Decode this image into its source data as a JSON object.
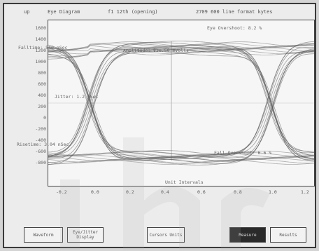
{
  "titlebar": {
    "left": "up",
    "center_left": "Eye Diagram",
    "center": "f1 12th (opening)",
    "right": "2709 600 line format kytes"
  },
  "annotations": {
    "eye_overshoot": "Eye Overshoot: 8.2 %",
    "fall_time": "Falltime: 540 pSec",
    "amplitude": "Amplitude: 830.50 mVolts",
    "jitter": "Jitter: 1.2 pSec",
    "rise_time": "Risetime: 3.04 nSec",
    "fall_overshoot": "Fall Overshoot: 6.6 %",
    "x_axis_title": "Unit Intervals"
  },
  "y_ticks": [
    "1600",
    "1400",
    "1200",
    "1000",
    "800",
    "600",
    "400",
    "200",
    "0",
    "-200",
    "-400",
    "-600",
    "-800"
  ],
  "x_ticks": [
    "-0.2",
    "0.0",
    "0.2",
    "0.4",
    "0.6",
    "0.8",
    "1.0",
    "1.2"
  ],
  "buttons": [
    {
      "label": "Waveform",
      "active": false
    },
    {
      "label": "Eye/Jitter Display",
      "active": false
    },
    {
      "label": "Cursors Units",
      "active": false
    },
    {
      "label": "Measure",
      "active": true
    },
    {
      "label": "Results",
      "active": false
    }
  ],
  "colors": {
    "trace": "#555555",
    "background": "#f6f6f6",
    "active_button": "#2a2a2a"
  }
}
